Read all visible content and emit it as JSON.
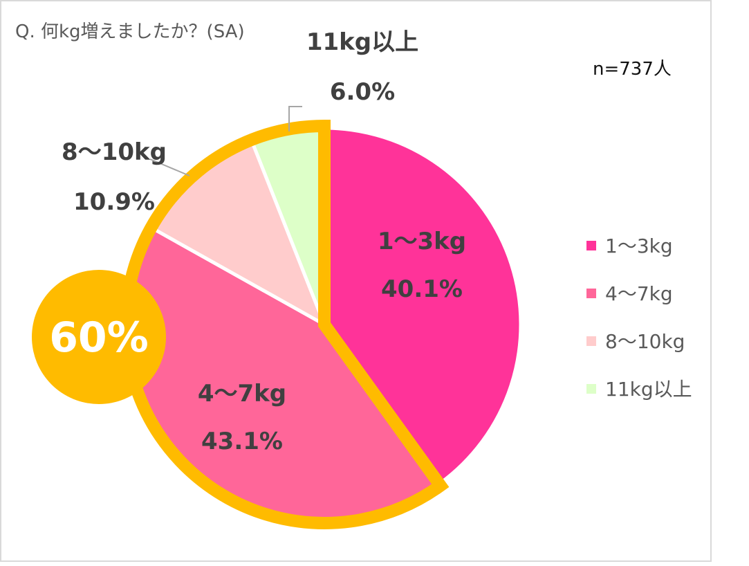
{
  "chart_data": {
    "type": "pie",
    "title": "Q. 何kg増えましたか？(SA)",
    "sample_size": "n=737人",
    "slices": [
      {
        "label": "1～3kg",
        "value": 40.1,
        "value_text": "40.1%",
        "color": "#ff3399"
      },
      {
        "label": "4～7kg",
        "value": 43.1,
        "value_text": "43.1%",
        "color": "#ff6699"
      },
      {
        "label": "8～10kg",
        "value": 10.9,
        "value_text": "10.9%",
        "color": "#ffcccc"
      },
      {
        "label": "11kg以上",
        "value": 6.0,
        "value_text": "6.0%",
        "color": "#ddffc8"
      }
    ],
    "legend": {
      "position": "right",
      "items": [
        "1～3kg",
        "4～7kg",
        "8～10kg",
        "11kg以上"
      ]
    },
    "highlight": {
      "text": "60%",
      "color": "#ffbb00"
    }
  }
}
